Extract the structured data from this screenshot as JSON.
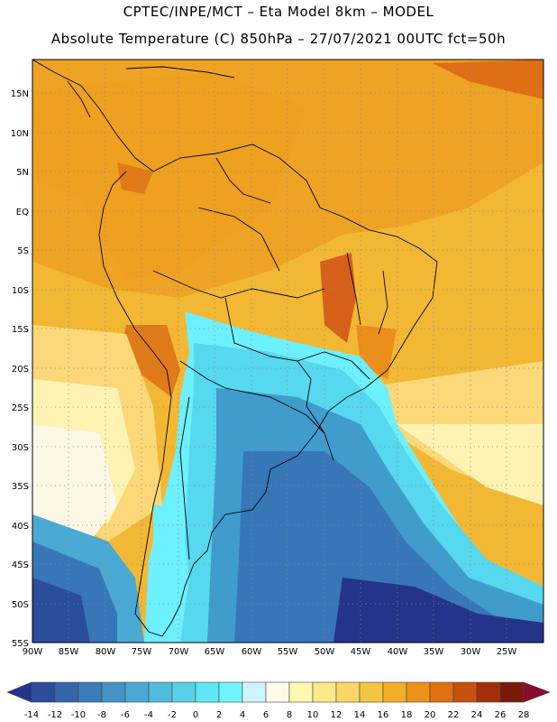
{
  "header": {
    "title_line1": "CPTEC/INPE/MCT –  Eta Model 8km – MODEL",
    "title_line2": "Absolute Temperature (C) 850hPa – 27/07/2021 00UTC fct=50h"
  },
  "map": {
    "lat_labels": [
      "15N",
      "10N",
      "5N",
      "EQ",
      "5S",
      "10S",
      "15S",
      "20S",
      "25S",
      "30S",
      "35S",
      "40S",
      "45S",
      "50S",
      "55S"
    ],
    "lon_labels": [
      "90W",
      "85W",
      "80W",
      "75W",
      "70W",
      "65W",
      "60W",
      "55W",
      "50W",
      "45W",
      "40W",
      "35W",
      "30W",
      "25W"
    ]
  },
  "colorbar": {
    "tick_labels": [
      "-14",
      "-12",
      "-10",
      "-8",
      "-6",
      "-4",
      "-2",
      "0",
      "2",
      "4",
      "6",
      "8",
      "10",
      "12",
      "14",
      "16",
      "18",
      "20",
      "22",
      "24",
      "26",
      "28"
    ],
    "colors": [
      "#24348a",
      "#2a4d9c",
      "#3366aa",
      "#3b7db8",
      "#4593c6",
      "#4aa9d2",
      "#50bcdd",
      "#58d1e8",
      "#5fe6f4",
      "#6ff4ff",
      "#d0f4ff",
      "#fff9e8",
      "#fff8b0",
      "#fbe98a",
      "#f8d766",
      "#f5c443",
      "#f2ae26",
      "#ee9118",
      "#e07012",
      "#c9500e",
      "#a3300a",
      "#7a1a0a",
      "#8b0a2e"
    ]
  }
}
